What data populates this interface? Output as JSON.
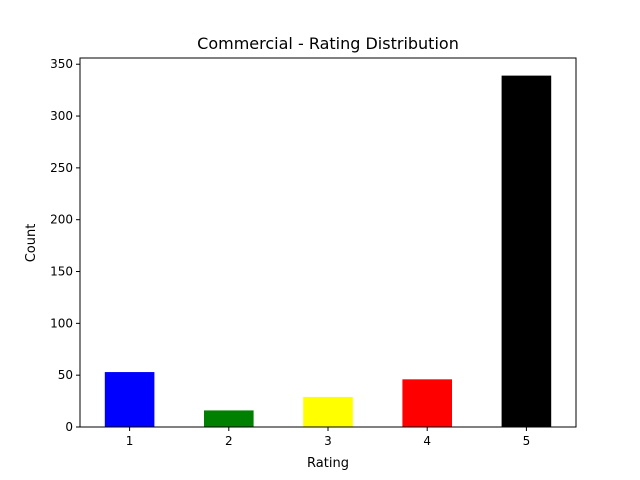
{
  "chart_data": {
    "type": "bar",
    "title": "Commercial - Rating Distribution",
    "xlabel": "Rating",
    "ylabel": "Count",
    "categories": [
      "1",
      "2",
      "3",
      "4",
      "5"
    ],
    "values": [
      53,
      16,
      29,
      46,
      339
    ],
    "colors": [
      "#0000ff",
      "#008000",
      "#ffff00",
      "#ff0000",
      "#000000"
    ],
    "ylim": [
      0,
      356
    ],
    "yticks": [
      0,
      50,
      100,
      150,
      200,
      250,
      300,
      350
    ],
    "grid": false,
    "legend": "none"
  }
}
